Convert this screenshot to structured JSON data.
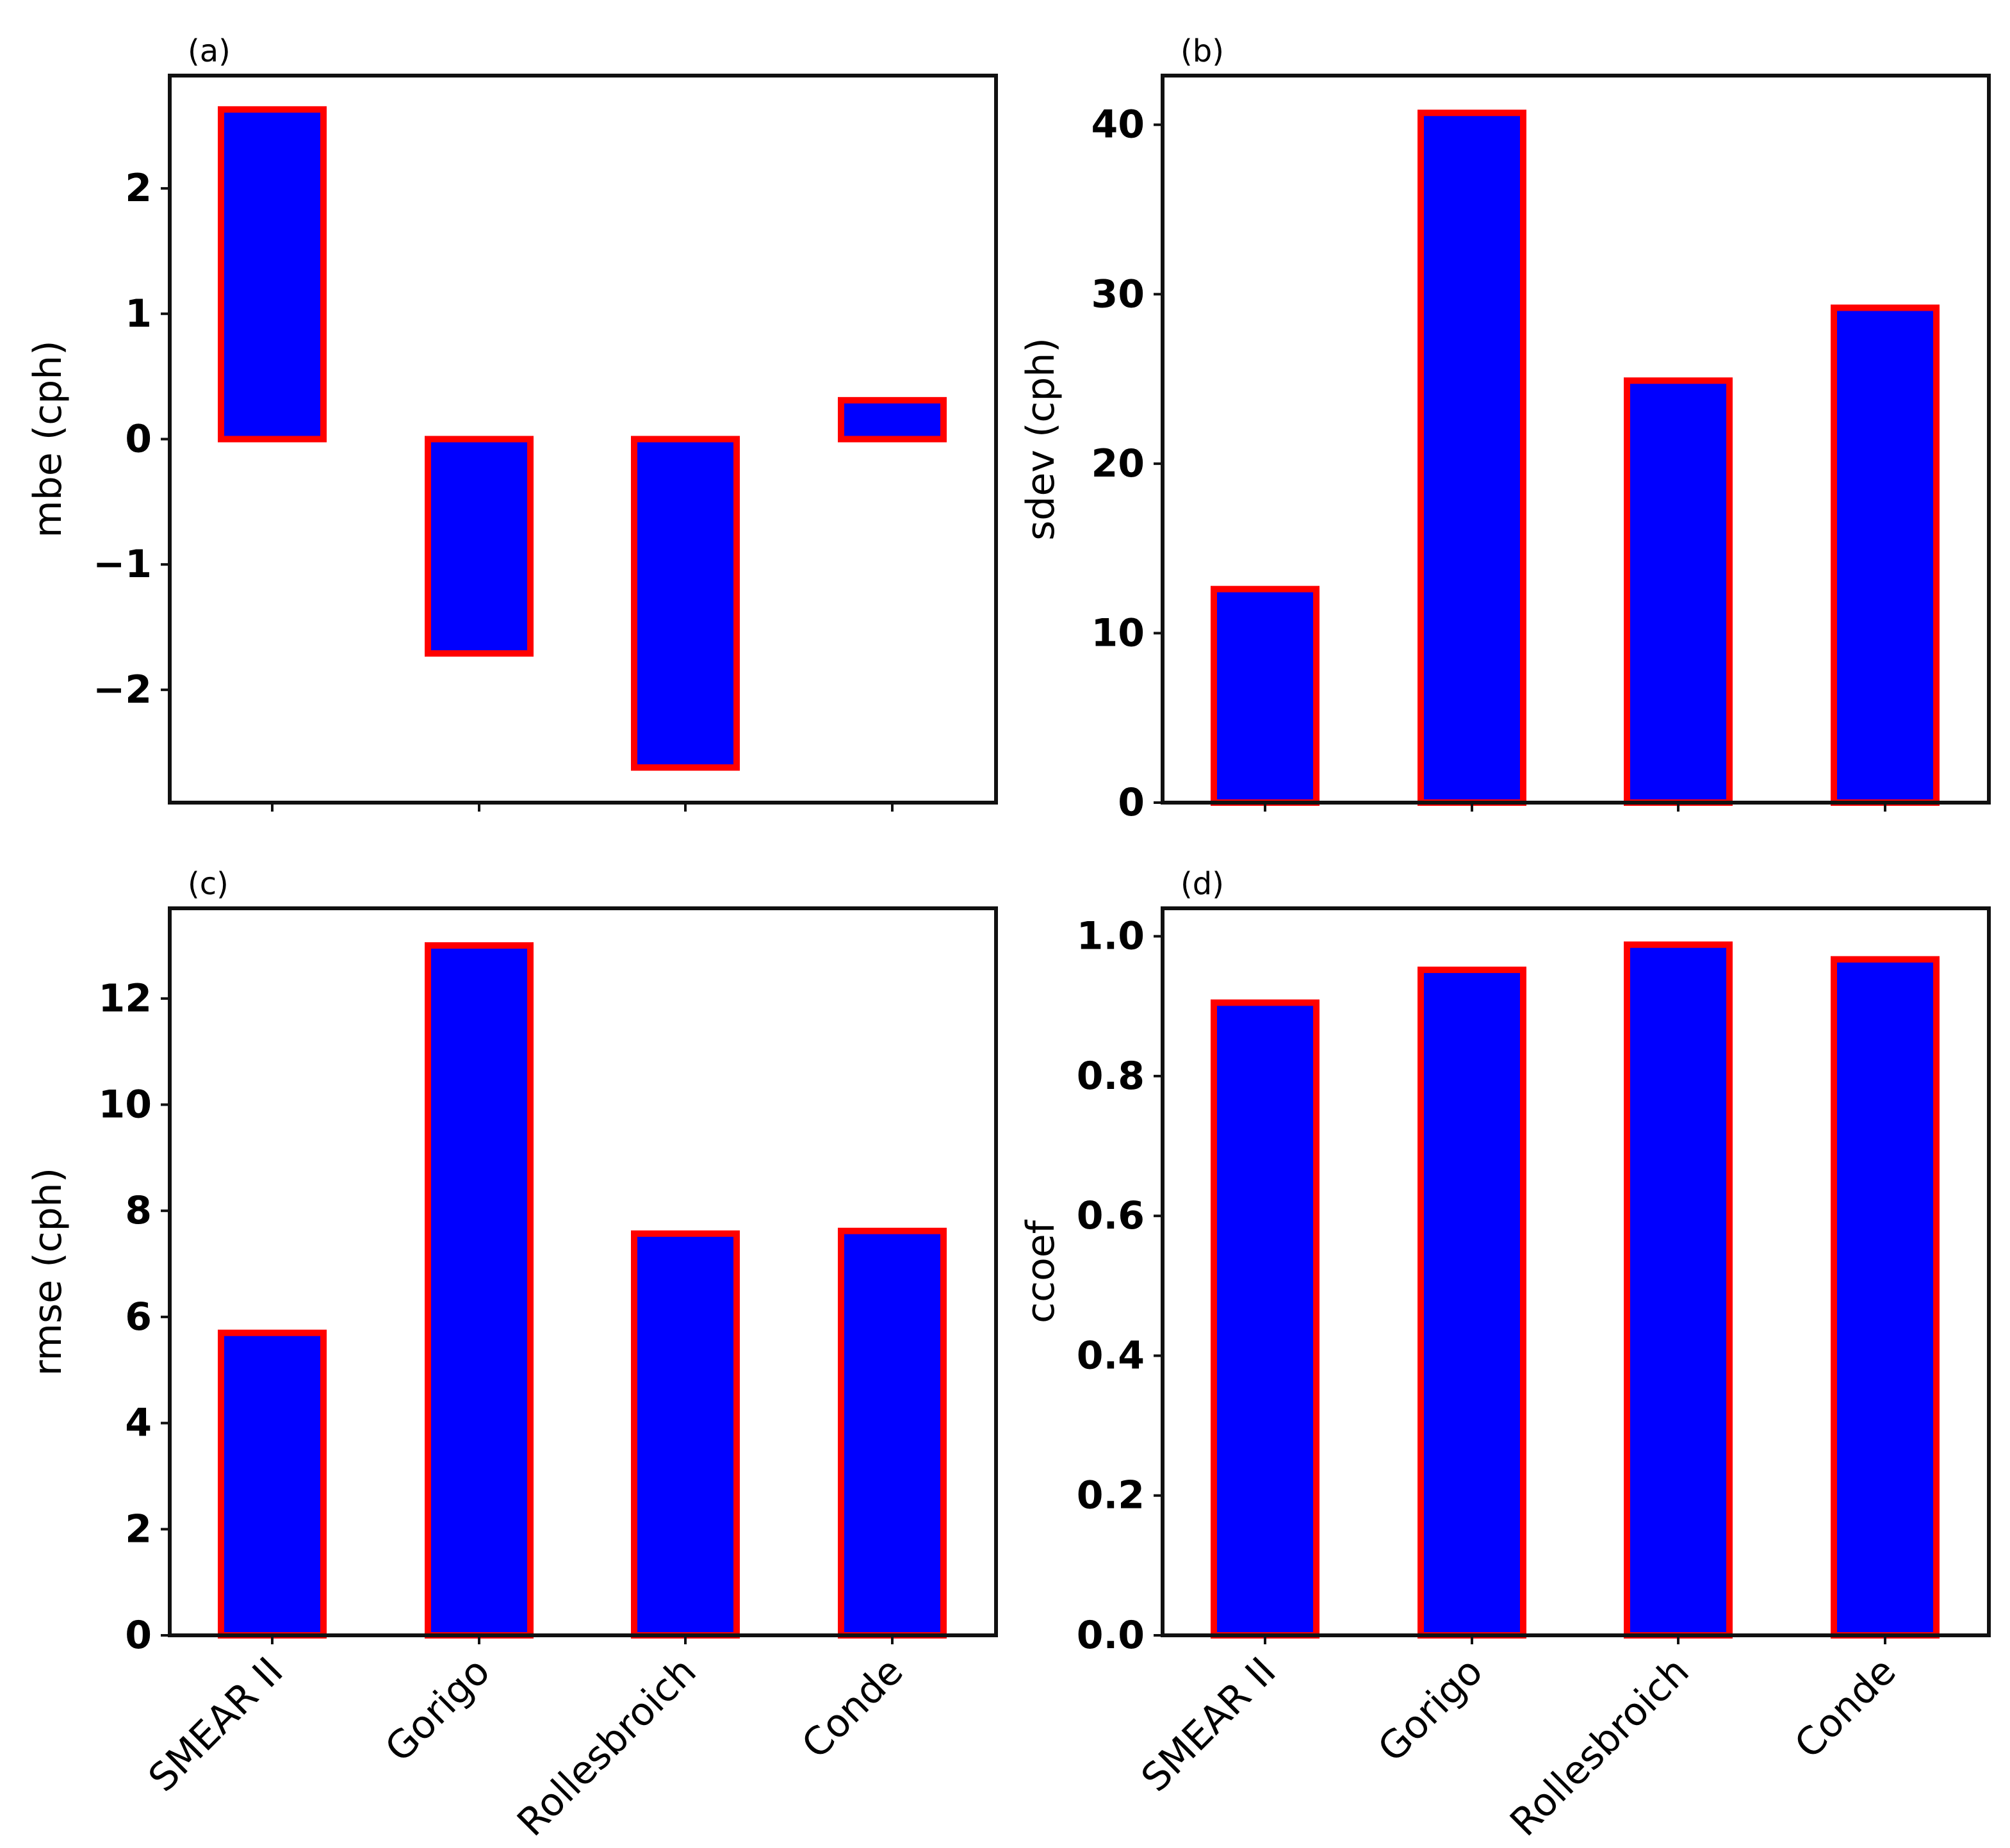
{
  "chart_data": [
    {
      "type": "bar",
      "panel": "(a)",
      "categories": [
        "SMEAR II",
        "Gorigo",
        "Rollesbroich",
        "Conde"
      ],
      "values": [
        2.63,
        -1.71,
        -2.62,
        0.31
      ],
      "ylabel": "mbe (cph)",
      "ylim": [
        -2.9,
        2.9
      ],
      "yticks": [
        -2,
        -1,
        0,
        1,
        2
      ],
      "ytick_labels": [
        "−2",
        "−1",
        "0",
        "1",
        "2"
      ],
      "show_category_labels": false
    },
    {
      "type": "bar",
      "panel": "(b)",
      "categories": [
        "SMEAR II",
        "Gorigo",
        "Rollesbroich",
        "Conde"
      ],
      "values": [
        12.6,
        40.7,
        24.9,
        29.2
      ],
      "ylabel": "sdev (cph)",
      "ylim": [
        0,
        42.9
      ],
      "yticks": [
        0,
        10,
        20,
        30,
        40
      ],
      "ytick_labels": [
        "0",
        "10",
        "20",
        "30",
        "40"
      ],
      "show_category_labels": false
    },
    {
      "type": "bar",
      "panel": "(c)",
      "categories": [
        "SMEAR II",
        "Gorigo",
        "Rollesbroich",
        "Conde"
      ],
      "values": [
        5.7,
        13.0,
        7.57,
        7.62
      ],
      "ylabel": "rmse (cph)",
      "ylim": [
        0,
        13.7
      ],
      "yticks": [
        0,
        2,
        4,
        6,
        8,
        10,
        12
      ],
      "ytick_labels": [
        "0",
        "2",
        "4",
        "6",
        "8",
        "10",
        "12"
      ],
      "show_category_labels": true
    },
    {
      "type": "bar",
      "panel": "(d)",
      "categories": [
        "SMEAR II",
        "Gorigo",
        "Rollesbroich",
        "Conde"
      ],
      "values": [
        0.905,
        0.952,
        0.988,
        0.967
      ],
      "ylabel": "ccoef",
      "ylim": [
        0,
        1.04
      ],
      "yticks": [
        0.0,
        0.2,
        0.4,
        0.6,
        0.8,
        1.0
      ],
      "ytick_labels": [
        "0.0",
        "0.2",
        "0.4",
        "0.6",
        "0.8",
        "1.0"
      ],
      "show_category_labels": true
    }
  ],
  "colors": {
    "bar_fill": "#0000ff",
    "bar_edge": "#ff0000",
    "axis": "#111111"
  }
}
